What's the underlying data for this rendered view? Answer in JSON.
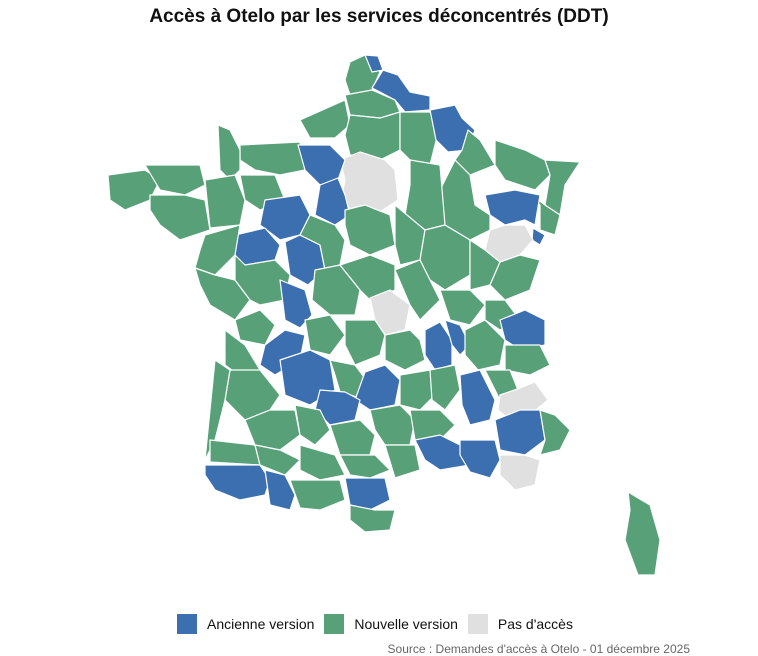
{
  "title": "Accès à Otelo par les services déconcentrés (DDT)",
  "colors": {
    "ancienne": "#3b6fb0",
    "nouvelle": "#58a178",
    "pas": "#e0e0e0"
  },
  "legend": [
    {
      "label": "Ancienne version",
      "color": "#3b6fb0"
    },
    {
      "label": "Nouvelle version",
      "color": "#58a178"
    },
    {
      "label": "Pas d'accès",
      "color": "#e0e0e0"
    }
  ],
  "source": "Source : Demandes d'accès à Otelo - 01 décembre 2025",
  "regions": [
    {
      "s": "n",
      "p": "350,62 365,55 380,72 372,90 350,95 345,80"
    },
    {
      "s": "a",
      "p": "365,55 378,56 383,70 372,72"
    },
    {
      "s": "a",
      "p": "383,70 398,75 410,92 430,96 430,110 405,112 395,100 380,92 372,88"
    },
    {
      "s": "n",
      "p": "345,95 372,90 395,100 400,112 380,118 350,115"
    },
    {
      "s": "n",
      "p": "300,120 345,100 350,125 335,138 310,138"
    },
    {
      "s": "n",
      "p": "350,115 380,118 400,112 400,150 380,160 350,155 345,135"
    },
    {
      "s": "n",
      "p": "400,112 430,112 440,125 430,165 410,160 400,150"
    },
    {
      "s": "a",
      "p": "430,110 455,105 462,118 475,130 468,150 448,152 436,140"
    },
    {
      "s": "n",
      "p": "468,130 480,140 495,165 470,175 455,160 462,150"
    },
    {
      "s": "n",
      "p": "495,140 525,150 545,160 550,175 535,190 505,180 495,165"
    },
    {
      "s": "n",
      "p": "545,160 580,162 565,185 560,215 545,205 550,175"
    },
    {
      "s": "n",
      "p": "525,190 545,205 560,215 555,235 540,230 540,205"
    },
    {
      "s": "a",
      "p": "485,195 515,190 540,195 535,225 525,220 505,225 490,215"
    },
    {
      "s": "a",
      "p": "533,228 545,235 540,245 532,240"
    },
    {
      "s": "p",
      "p": "490,230 505,225 525,225 533,240 520,255 500,262 485,250"
    },
    {
      "s": "n",
      "p": "455,160 470,175 475,205 490,215 490,230 470,240 445,225 440,190"
    },
    {
      "s": "n",
      "p": "410,160 440,165 445,225 425,230 405,215 410,185"
    },
    {
      "s": "p",
      "p": "340,160 360,152 385,160 395,170 398,200 380,212 365,205 350,210 342,195 345,180"
    },
    {
      "s": "n",
      "p": "240,145 300,142 305,170 280,175 255,170 240,160"
    },
    {
      "s": "n",
      "p": "218,125 230,130 240,150 240,170 230,180 220,170"
    },
    {
      "s": "n",
      "p": "108,175 145,170 160,180 150,200 125,210 110,200"
    },
    {
      "s": "n",
      "p": "145,165 200,165 205,185 185,195 160,190"
    },
    {
      "s": "n",
      "p": "150,195 185,195 205,200 210,230 180,240 160,225 150,210"
    },
    {
      "s": "n",
      "p": "205,180 235,175 245,200 240,225 210,228"
    },
    {
      "s": "a",
      "p": "298,145 330,145 345,160 338,180 320,185 305,170"
    },
    {
      "s": "a",
      "p": "320,185 338,178 345,195 350,215 335,225 315,215"
    },
    {
      "s": "n",
      "p": "240,175 275,175 285,200 260,210 245,200"
    },
    {
      "s": "a",
      "p": "265,200 300,195 310,215 300,235 280,240 260,225"
    },
    {
      "s": "a",
      "p": "235,235 265,228 280,245 275,260 245,265 232,255"
    },
    {
      "s": "a",
      "p": "285,242 300,235 320,245 325,270 308,285 290,275"
    },
    {
      "s": "n",
      "p": "310,215 335,225 345,240 340,265 325,270 320,245 300,235"
    },
    {
      "s": "n",
      "p": "345,210 365,205 390,215 395,245 370,255 350,245 345,225"
    },
    {
      "s": "n",
      "p": "395,205 425,230 420,260 400,265 395,245"
    },
    {
      "s": "n",
      "p": "425,230 445,225 470,240 470,275 445,290 430,280 420,260"
    },
    {
      "s": "n",
      "p": "470,240 485,250 500,262 490,285 470,290 470,275"
    },
    {
      "s": "n",
      "p": "500,262 520,255 540,260 530,290 505,300 490,285"
    },
    {
      "s": "n",
      "p": "205,235 240,225 235,255 215,275 195,268 200,250"
    },
    {
      "s": "n",
      "p": "195,268 215,275 235,280 250,300 235,320 210,305 200,285"
    },
    {
      "s": "n",
      "p": "235,255 245,265 275,260 290,275 285,300 260,305 250,300 235,280"
    },
    {
      "s": "a",
      "p": "280,280 305,290 312,315 300,328 285,320"
    },
    {
      "s": "n",
      "p": "315,270 340,265 360,290 355,315 330,315 312,300"
    },
    {
      "s": "n",
      "p": "340,265 370,255 395,265 395,290 370,300 360,290"
    },
    {
      "s": "p",
      "p": "370,298 390,290 410,305 405,330 385,335 375,320"
    },
    {
      "s": "n",
      "p": "395,270 420,260 430,280 440,300 420,320 410,305"
    },
    {
      "s": "n",
      "p": "440,290 470,290 485,305 470,325 450,320"
    },
    {
      "s": "n",
      "p": "485,300 505,300 520,320 500,330 485,320"
    },
    {
      "s": "a",
      "p": "500,320 525,310 545,320 545,345 520,350 505,340"
    },
    {
      "s": "n",
      "p": "235,320 260,310 275,325 265,345 240,340"
    },
    {
      "s": "n",
      "p": "225,330 245,345 260,370 245,380 225,365"
    },
    {
      "s": "a",
      "p": "265,345 285,330 305,335 300,360 275,375 260,365"
    },
    {
      "s": "n",
      "p": "305,320 330,315 345,335 330,355 310,350"
    },
    {
      "s": "n",
      "p": "345,320 375,320 385,335 380,355 355,365 345,345"
    },
    {
      "s": "n",
      "p": "385,335 410,330 420,340 425,360 405,370 385,360"
    },
    {
      "s": "a",
      "p": "425,330 440,322 452,340 452,365 435,370 425,355"
    },
    {
      "s": "a",
      "p": "445,320 460,325 470,345 460,355 452,345"
    },
    {
      "s": "n",
      "p": "465,330 485,320 505,340 500,365 478,370 465,355"
    },
    {
      "s": "n",
      "p": "505,345 540,345 550,365 530,375 505,370"
    },
    {
      "s": "a",
      "p": "280,360 310,350 330,360 335,390 310,405 285,395"
    },
    {
      "s": "n",
      "p": "330,360 355,365 370,385 360,398 340,392 335,375"
    },
    {
      "s": "a",
      "p": "365,372 385,365 400,380 395,405 370,410 355,400"
    },
    {
      "s": "n",
      "p": "400,375 430,370 435,395 420,410 400,405"
    },
    {
      "s": "n",
      "p": "430,370 455,365 460,390 445,410 432,400"
    },
    {
      "s": "a",
      "p": "460,375 480,370 495,400 490,420 470,425 462,405"
    },
    {
      "s": "n",
      "p": "485,370 510,370 520,395 500,400"
    },
    {
      "s": "p",
      "p": "500,395 520,388 535,382 548,400 530,415 510,420 498,410"
    },
    {
      "s": "a",
      "p": "495,420 520,410 540,410 545,440 525,455 500,450"
    },
    {
      "s": "n",
      "p": "540,410 555,415 570,430 560,450 540,455 545,440"
    },
    {
      "s": "p",
      "p": "500,455 525,455 540,460 535,485 515,490 500,475"
    },
    {
      "s": "a",
      "p": "320,390 345,392 360,400 355,420 330,425 315,410"
    },
    {
      "s": "n",
      "p": "230,370 260,370 280,395 270,410 245,420 225,400"
    },
    {
      "s": "n",
      "p": "215,360 230,370 225,400 215,440 205,460 210,410"
    },
    {
      "s": "n",
      "p": "245,420 270,410 295,410 300,435 280,450 255,445"
    },
    {
      "s": "n",
      "p": "295,405 320,410 330,430 315,445 300,435"
    },
    {
      "s": "n",
      "p": "330,425 360,420 375,435 370,455 340,455"
    },
    {
      "s": "n",
      "p": "370,410 400,405 415,420 410,445 385,445 375,430"
    },
    {
      "s": "n",
      "p": "410,410 440,410 455,425 440,440 415,440"
    },
    {
      "s": "a",
      "p": "415,440 440,435 460,445 470,465 440,470 425,460"
    },
    {
      "s": "a",
      "p": "460,440 495,440 500,460 490,478 470,472 460,455"
    },
    {
      "s": "n",
      "p": "210,440 255,445 260,465 210,462"
    },
    {
      "s": "n",
      "p": "255,445 280,450 300,460 285,475 260,465"
    },
    {
      "s": "n",
      "p": "300,445 335,455 345,475 320,480 300,470"
    },
    {
      "s": "n",
      "p": "340,455 375,455 390,470 370,478 350,475"
    },
    {
      "s": "n",
      "p": "385,445 415,445 420,470 395,478"
    },
    {
      "s": "a",
      "p": "205,465 260,465 270,480 265,495 240,500 215,490 205,475"
    },
    {
      "s": "a",
      "p": "265,470 285,475 295,495 290,510 270,505"
    },
    {
      "s": "n",
      "p": "290,480 320,480 340,480 345,500 320,510 300,508"
    },
    {
      "s": "a",
      "p": "345,478 385,478 390,500 370,510 350,505"
    },
    {
      "s": "n",
      "p": "350,505 375,510 395,510 390,530 365,532 350,520"
    },
    {
      "s": "n",
      "p": "628,492 650,505 660,540 655,575 638,575 625,540 630,510"
    }
  ]
}
